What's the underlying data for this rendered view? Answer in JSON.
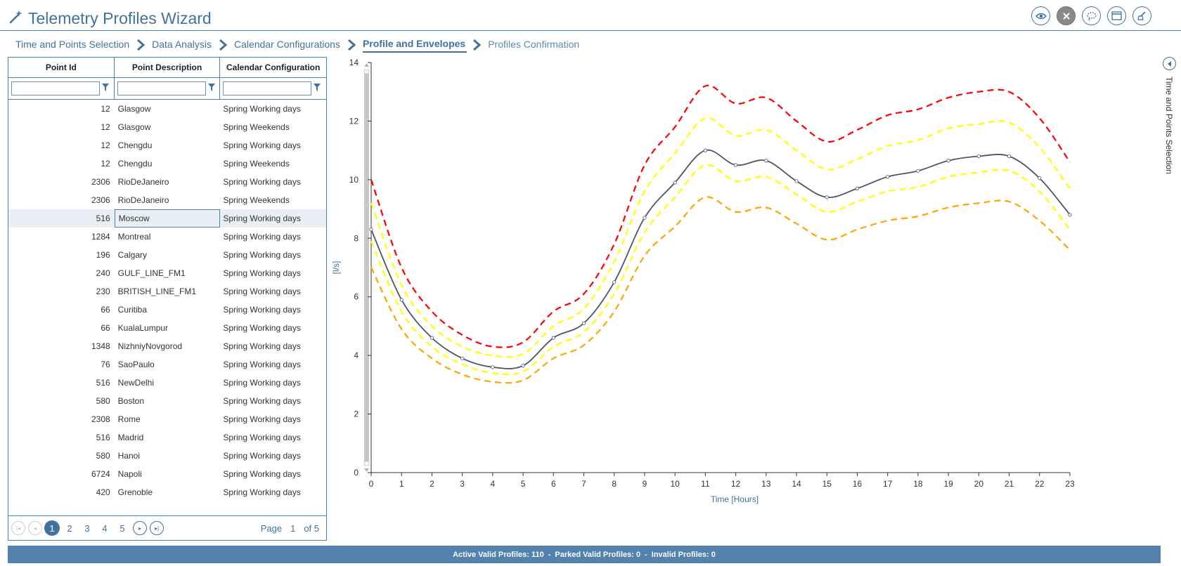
{
  "app": {
    "title": "Telemetry Profiles Wizard"
  },
  "toolbar": {
    "buttons": [
      "view-icon",
      "close-icon",
      "lasso-icon",
      "window-icon",
      "clear-icon"
    ]
  },
  "breadcrumb": [
    {
      "label": "Time and Points Selection",
      "state": "done"
    },
    {
      "label": "Data Analysis",
      "state": "done"
    },
    {
      "label": "Calendar Configurations",
      "state": "done"
    },
    {
      "label": "Profile and Envelopes",
      "state": "active"
    },
    {
      "label": "Profiles Confirmation",
      "state": "pending"
    }
  ],
  "grid": {
    "columns": [
      "Point Id",
      "Point Description",
      "Calendar Configuration"
    ],
    "rows": [
      {
        "id": "12",
        "desc": "Glasgow",
        "cal": "Spring Working days"
      },
      {
        "id": "12",
        "desc": "Glasgow",
        "cal": "Spring Weekends"
      },
      {
        "id": "12",
        "desc": "Chengdu",
        "cal": "Spring Working days"
      },
      {
        "id": "12",
        "desc": "Chengdu",
        "cal": "Spring Weekends"
      },
      {
        "id": "2306",
        "desc": "RioDeJaneiro",
        "cal": "Spring Working days"
      },
      {
        "id": "2306",
        "desc": "RioDeJaneiro",
        "cal": "Spring Weekends"
      },
      {
        "id": "516",
        "desc": "Moscow",
        "cal": "Spring Working days"
      },
      {
        "id": "1284",
        "desc": "Montreal",
        "cal": "Spring Working days"
      },
      {
        "id": "196",
        "desc": "Calgary",
        "cal": "Spring Working days"
      },
      {
        "id": "240",
        "desc": "GULF_LINE_FM1",
        "cal": "Spring Working days"
      },
      {
        "id": "230",
        "desc": "BRITISH_LINE_FM1",
        "cal": "Spring Working days"
      },
      {
        "id": "66",
        "desc": "Curitiba",
        "cal": "Spring Working days"
      },
      {
        "id": "66",
        "desc": "KualaLumpur",
        "cal": "Spring Working days"
      },
      {
        "id": "1348",
        "desc": "NizhniyNovgorod",
        "cal": "Spring Working days"
      },
      {
        "id": "76",
        "desc": "SaoPaulo",
        "cal": "Spring Working days"
      },
      {
        "id": "516",
        "desc": "NewDelhi",
        "cal": "Spring Working days"
      },
      {
        "id": "580",
        "desc": "Boston",
        "cal": "Spring Working days"
      },
      {
        "id": "2308",
        "desc": "Rome",
        "cal": "Spring Working days"
      },
      {
        "id": "516",
        "desc": "Madrid",
        "cal": "Spring Working days"
      },
      {
        "id": "580",
        "desc": "Hanoi",
        "cal": "Spring Working days"
      },
      {
        "id": "6724",
        "desc": "Napoli",
        "cal": "Spring Working days"
      },
      {
        "id": "420",
        "desc": "Grenoble",
        "cal": "Spring Working days"
      }
    ],
    "selected_row": 6
  },
  "pager": {
    "pages": [
      "1",
      "2",
      "3",
      "4",
      "5"
    ],
    "current": "1",
    "page_label": "Page",
    "page_value": "1",
    "of_label": "of 5"
  },
  "side_panel": {
    "label": "Time and Points Selection"
  },
  "status": {
    "active": "Active Valid Profiles: 110",
    "sep1": "-",
    "parked": "Parked Valid Profiles: 0",
    "sep2": "-",
    "invalid": "Invalid Profiles: 0"
  },
  "chart_data": {
    "type": "line",
    "xlabel": "Time [Hours]",
    "ylabel": "[l/s]",
    "x": [
      0,
      1,
      2,
      3,
      4,
      5,
      6,
      7,
      8,
      9,
      10,
      11,
      12,
      13,
      14,
      15,
      16,
      17,
      18,
      19,
      20,
      21,
      22,
      23
    ],
    "xlim": [
      0,
      23
    ],
    "ylim": [
      0,
      14
    ],
    "yticks": [
      0,
      2,
      4,
      6,
      8,
      10,
      12,
      14
    ],
    "grid": false,
    "series": [
      {
        "color": "#ff0000",
        "style": "dashed",
        "values": [
          10.0,
          7.0,
          5.5,
          4.7,
          4.3,
          4.45,
          5.5,
          6.1,
          7.8,
          10.5,
          11.8,
          13.2,
          12.6,
          12.8,
          12.0,
          11.3,
          11.7,
          12.2,
          12.4,
          12.8,
          13.0,
          13.0,
          12.1,
          10.6
        ]
      },
      {
        "color": "#ffff00",
        "style": "dashed",
        "values": [
          9.2,
          6.4,
          5.0,
          4.3,
          4.0,
          4.05,
          5.0,
          5.6,
          7.2,
          9.6,
          10.9,
          12.1,
          11.5,
          11.7,
          11.0,
          10.35,
          10.7,
          11.15,
          11.35,
          11.75,
          11.9,
          11.95,
          11.1,
          9.7
        ]
      },
      {
        "color": "#4a5568",
        "style": "solid",
        "markers": true,
        "values": [
          8.3,
          5.9,
          4.6,
          3.9,
          3.6,
          3.65,
          4.6,
          5.1,
          6.5,
          8.7,
          9.9,
          11.0,
          10.5,
          10.65,
          9.95,
          9.4,
          9.7,
          10.1,
          10.3,
          10.65,
          10.8,
          10.8,
          10.05,
          8.8
        ]
      },
      {
        "color": "#ffff00",
        "style": "dashed",
        "values": [
          7.9,
          5.5,
          4.3,
          3.7,
          3.4,
          3.45,
          4.3,
          4.8,
          6.1,
          8.2,
          9.4,
          10.5,
          9.95,
          10.1,
          9.5,
          8.9,
          9.25,
          9.6,
          9.75,
          10.1,
          10.25,
          10.3,
          9.6,
          8.3
        ]
      },
      {
        "color": "#ffa500",
        "style": "dashed",
        "values": [
          7.0,
          4.9,
          3.9,
          3.35,
          3.1,
          3.15,
          3.9,
          4.35,
          5.5,
          7.4,
          8.4,
          9.4,
          8.9,
          9.05,
          8.5,
          7.95,
          8.3,
          8.6,
          8.75,
          9.05,
          9.2,
          9.25,
          8.6,
          7.6
        ]
      }
    ]
  }
}
